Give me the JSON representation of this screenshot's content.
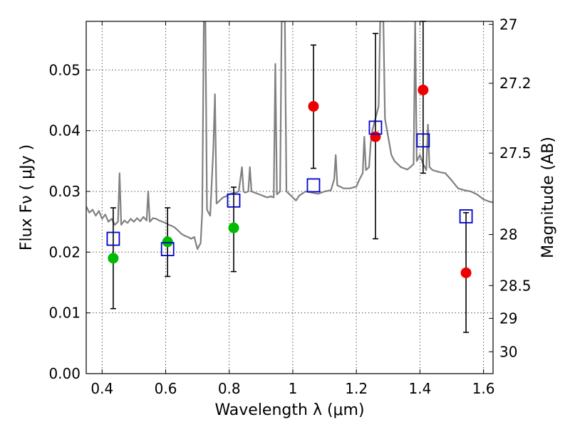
{
  "chart_data": {
    "type": "scatter",
    "xlabel": "Wavelength  λ (μm)",
    "ylabel": "Flux  Fν  ( μJy )",
    "ylabel_right": "Magnitude (AB)",
    "xlim": [
      0.35,
      1.63
    ],
    "ylim": [
      0.0,
      0.058
    ],
    "grid": true,
    "x_ticks": [
      0.4,
      0.6,
      0.8,
      1.0,
      1.2,
      1.4,
      1.6
    ],
    "x_tick_labels": [
      "0.4",
      "0.6",
      "0.8",
      "1",
      "1.2",
      "1.4",
      "1.6"
    ],
    "y_ticks": [
      0.0,
      0.01,
      0.02,
      0.03,
      0.04,
      0.05
    ],
    "y_tick_labels": [
      "0.00",
      "0.01",
      "0.02",
      "0.03",
      "0.04",
      "0.05"
    ],
    "right_ticks": [
      {
        "label": "27",
        "flux": 0.0575
      },
      {
        "label": "27.2",
        "flux": 0.0478
      },
      {
        "label": "27.5",
        "flux": 0.0363
      },
      {
        "label": "28",
        "flux": 0.0229
      },
      {
        "label": "28.5",
        "flux": 0.0145
      },
      {
        "label": "29",
        "flux": 0.0091
      },
      {
        "label": "30",
        "flux": 0.0036
      }
    ],
    "series": [
      {
        "marker": "circle",
        "color": "#00bb00",
        "points": [
          {
            "x": 0.435,
            "y": 0.019
          },
          {
            "x": 0.606,
            "y": 0.0217
          },
          {
            "x": 0.814,
            "y": 0.024
          }
        ]
      },
      {
        "marker": "circle",
        "color": "#ee0000",
        "points": [
          {
            "x": 1.065,
            "y": 0.044
          },
          {
            "x": 1.26,
            "y": 0.039
          },
          {
            "x": 1.41,
            "y": 0.0467
          },
          {
            "x": 1.545,
            "y": 0.0166
          }
        ]
      },
      {
        "marker": "square",
        "color": "#0000cc",
        "points": [
          {
            "x": 0.435,
            "y": 0.0222
          },
          {
            "x": 0.606,
            "y": 0.0205
          },
          {
            "x": 0.814,
            "y": 0.0285
          },
          {
            "x": 1.065,
            "y": 0.031
          },
          {
            "x": 1.26,
            "y": 0.0405
          },
          {
            "x": 1.41,
            "y": 0.0384
          },
          {
            "x": 1.545,
            "y": 0.0259
          }
        ]
      }
    ],
    "error_bars": [
      {
        "x": 0.435,
        "low": 0.0107,
        "high": 0.0273
      },
      {
        "x": 0.606,
        "low": 0.016,
        "high": 0.0273
      },
      {
        "x": 0.814,
        "low": 0.0168,
        "high": 0.0307
      },
      {
        "x": 1.065,
        "low": 0.0338,
        "high": 0.0541
      },
      {
        "x": 1.26,
        "low": 0.0222,
        "high": 0.056
      },
      {
        "x": 1.41,
        "low": 0.033,
        "high": 0.058
      },
      {
        "x": 1.545,
        "low": 0.0068,
        "high": 0.0265
      }
    ],
    "template_spectrum": {
      "color": "#808080",
      "points": [
        [
          0.35,
          0.0275
        ],
        [
          0.36,
          0.0265
        ],
        [
          0.37,
          0.027
        ],
        [
          0.38,
          0.026
        ],
        [
          0.39,
          0.0268
        ],
        [
          0.4,
          0.0255
        ],
        [
          0.41,
          0.0262
        ],
        [
          0.42,
          0.025
        ],
        [
          0.43,
          0.0255
        ],
        [
          0.44,
          0.0245
        ],
        [
          0.45,
          0.025
        ],
        [
          0.455,
          0.033
        ],
        [
          0.46,
          0.0245
        ],
        [
          0.47,
          0.0252
        ],
        [
          0.48,
          0.0248
        ],
        [
          0.49,
          0.0255
        ],
        [
          0.5,
          0.025
        ],
        [
          0.51,
          0.0256
        ],
        [
          0.52,
          0.0251
        ],
        [
          0.53,
          0.0258
        ],
        [
          0.54,
          0.0252
        ],
        [
          0.545,
          0.03
        ],
        [
          0.55,
          0.025
        ],
        [
          0.56,
          0.0256
        ],
        [
          0.57,
          0.0255
        ],
        [
          0.58,
          0.0252
        ],
        [
          0.59,
          0.025
        ],
        [
          0.6,
          0.0248
        ],
        [
          0.61,
          0.0245
        ],
        [
          0.62,
          0.0243
        ],
        [
          0.63,
          0.024
        ],
        [
          0.64,
          0.0235
        ],
        [
          0.65,
          0.023
        ],
        [
          0.66,
          0.0227
        ],
        [
          0.67,
          0.0225
        ],
        [
          0.68,
          0.0222
        ],
        [
          0.69,
          0.0225
        ],
        [
          0.7,
          0.0205
        ],
        [
          0.71,
          0.0215
        ],
        [
          0.715,
          0.0265
        ],
        [
          0.72,
          0.058
        ],
        [
          0.725,
          0.058
        ],
        [
          0.73,
          0.027
        ],
        [
          0.74,
          0.026
        ],
        [
          0.75,
          0.037
        ],
        [
          0.755,
          0.046
        ],
        [
          0.76,
          0.028
        ],
        [
          0.77,
          0.0285
        ],
        [
          0.78,
          0.029
        ],
        [
          0.79,
          0.0292
        ],
        [
          0.8,
          0.0295
        ],
        [
          0.81,
          0.0297
        ],
        [
          0.82,
          0.0298
        ],
        [
          0.83,
          0.03
        ],
        [
          0.84,
          0.034
        ],
        [
          0.845,
          0.03
        ],
        [
          0.85,
          0.0298
        ],
        [
          0.86,
          0.03
        ],
        [
          0.865,
          0.034
        ],
        [
          0.87,
          0.03
        ],
        [
          0.88,
          0.0298
        ],
        [
          0.89,
          0.0296
        ],
        [
          0.9,
          0.0294
        ],
        [
          0.91,
          0.0292
        ],
        [
          0.92,
          0.029
        ],
        [
          0.93,
          0.0292
        ],
        [
          0.94,
          0.029
        ],
        [
          0.945,
          0.051
        ],
        [
          0.95,
          0.0295
        ],
        [
          0.96,
          0.03
        ],
        [
          0.965,
          0.058
        ],
        [
          0.975,
          0.058
        ],
        [
          0.98,
          0.03
        ],
        [
          0.99,
          0.0295
        ],
        [
          1.0,
          0.029
        ],
        [
          1.01,
          0.0285
        ],
        [
          1.02,
          0.0293
        ],
        [
          1.04,
          0.03
        ],
        [
          1.06,
          0.0298
        ],
        [
          1.08,
          0.0296
        ],
        [
          1.1,
          0.03
        ],
        [
          1.12,
          0.0302
        ],
        [
          1.13,
          0.032
        ],
        [
          1.135,
          0.036
        ],
        [
          1.14,
          0.031
        ],
        [
          1.16,
          0.0305
        ],
        [
          1.18,
          0.0305
        ],
        [
          1.2,
          0.0308
        ],
        [
          1.21,
          0.032
        ],
        [
          1.22,
          0.033
        ],
        [
          1.225,
          0.039
        ],
        [
          1.23,
          0.0335
        ],
        [
          1.24,
          0.034
        ],
        [
          1.245,
          0.038
        ],
        [
          1.25,
          0.04
        ],
        [
          1.26,
          0.042
        ],
        [
          1.27,
          0.044
        ],
        [
          1.275,
          0.058
        ],
        [
          1.285,
          0.058
        ],
        [
          1.29,
          0.042
        ],
        [
          1.3,
          0.039
        ],
        [
          1.31,
          0.036
        ],
        [
          1.32,
          0.035
        ],
        [
          1.33,
          0.0345
        ],
        [
          1.34,
          0.034
        ],
        [
          1.35,
          0.0338
        ],
        [
          1.36,
          0.0336
        ],
        [
          1.37,
          0.034
        ],
        [
          1.38,
          0.0345
        ],
        [
          1.385,
          0.058
        ],
        [
          1.39,
          0.035
        ],
        [
          1.4,
          0.036
        ],
        [
          1.41,
          0.0345
        ],
        [
          1.42,
          0.0335
        ],
        [
          1.425,
          0.041
        ],
        [
          1.43,
          0.034
        ],
        [
          1.44,
          0.0335
        ],
        [
          1.46,
          0.0332
        ],
        [
          1.48,
          0.033
        ],
        [
          1.5,
          0.0318
        ],
        [
          1.52,
          0.0305
        ],
        [
          1.54,
          0.0302
        ],
        [
          1.56,
          0.03
        ],
        [
          1.58,
          0.0295
        ],
        [
          1.6,
          0.0287
        ],
        [
          1.62,
          0.0283
        ],
        [
          1.63,
          0.0282
        ]
      ]
    }
  }
}
